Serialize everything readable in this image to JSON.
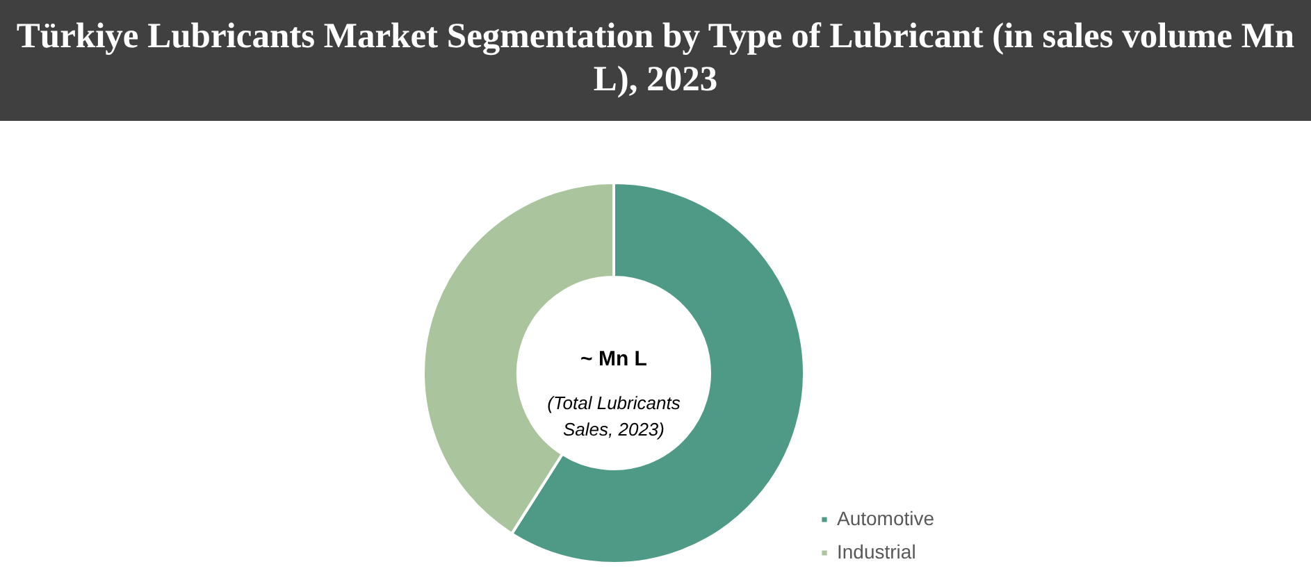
{
  "chart_data": {
    "type": "donut",
    "title": "Türkiye Lubricants Market Segmentation by Type of Lubricant (in sales volume Mn L), 2023",
    "categories": [
      "Automotive",
      "Industrial"
    ],
    "values": [
      59,
      41
    ],
    "colors": [
      "#4e9a87",
      "#aac59e"
    ],
    "legend": "bottom right",
    "annotations": [
      "~ Mn L",
      "(Total Lubricants\nSales, 2023)"
    ]
  }
}
